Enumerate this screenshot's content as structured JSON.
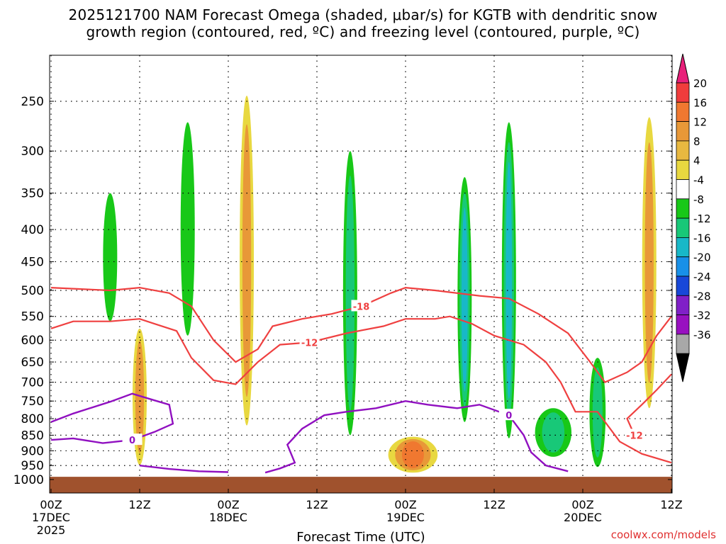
{
  "title_line1": "2025121700 NAM Forecast Omega (shaded, μbar/s) for KGTB with dendritic snow",
  "title_line2": "growth region (contoured, red, ºC) and freezing level (contoured, purple, ºC)",
  "credit": "coolwx.com/models",
  "chart_data": {
    "type": "time-height cross section",
    "title": "2025121700 NAM Forecast Omega (shaded, μbar/s) for KGTB with dendritic snow growth region (contoured, red, ºC) and freezing level (contoured, purple, ºC)",
    "xlabel": "Forecast Time (UTC)",
    "ylabel": "",
    "xlim_hours": [
      0,
      84
    ],
    "ylim_hpa": [
      1000,
      200
    ],
    "x_ticks": [
      {
        "hour": 0,
        "line1": "00Z",
        "line2": "17DEC",
        "line3": "2025"
      },
      {
        "hour": 12,
        "line1": "12Z",
        "line2": "",
        "line3": ""
      },
      {
        "hour": 24,
        "line1": "00Z",
        "line2": "18DEC",
        "line3": ""
      },
      {
        "hour": 36,
        "line1": "12Z",
        "line2": "",
        "line3": ""
      },
      {
        "hour": 48,
        "line1": "00Z",
        "line2": "19DEC",
        "line3": ""
      },
      {
        "hour": 60,
        "line1": "12Z",
        "line2": "",
        "line3": ""
      },
      {
        "hour": 72,
        "line1": "00Z",
        "line2": "20DEC",
        "line3": ""
      },
      {
        "hour": 84,
        "line1": "12Z",
        "line2": "",
        "line3": ""
      }
    ],
    "y_ticks": [
      250,
      300,
      350,
      400,
      450,
      500,
      550,
      600,
      650,
      700,
      750,
      800,
      850,
      900,
      950,
      1000
    ],
    "grid": true,
    "colorbar": {
      "labels": [
        "20",
        "16",
        "12",
        "8",
        "4",
        "-4",
        "-8",
        "-12",
        "-16",
        "-20",
        "-24",
        "-28",
        "-32",
        "-36"
      ],
      "colors": [
        "#e8207a",
        "#f03c3c",
        "#f07830",
        "#e89838",
        "#e8b840",
        "#e8d840",
        "#ffffff",
        "#18c818",
        "#18c878",
        "#18b8c8",
        "#1890e8",
        "#1848d8",
        "#8020c8",
        "#9810c0",
        "#a8a8a8",
        "#000000"
      ]
    },
    "omega_areas": [
      {
        "hour": 26.5,
        "top_hpa": 245,
        "bottom_hpa": 820,
        "peak": 11
      },
      {
        "hour": 12.0,
        "top_hpa": 575,
        "bottom_hpa": 948,
        "peak": 10
      },
      {
        "hour": 49.0,
        "top_hpa": 855,
        "bottom_hpa": 975,
        "peak": 14
      },
      {
        "hour": 81.0,
        "top_hpa": 265,
        "bottom_hpa": 770,
        "peak": 10
      },
      {
        "hour": 8.0,
        "top_hpa": 350,
        "bottom_hpa": 560,
        "peak": -6
      },
      {
        "hour": 18.5,
        "top_hpa": 270,
        "bottom_hpa": 590,
        "peak": -6
      },
      {
        "hour": 40.5,
        "top_hpa": 300,
        "bottom_hpa": 850,
        "peak": -10
      },
      {
        "hour": 56.0,
        "top_hpa": 330,
        "bottom_hpa": 810,
        "peak": -13
      },
      {
        "hour": 62.0,
        "top_hpa": 270,
        "bottom_hpa": 860,
        "peak": -15
      },
      {
        "hour": 68.0,
        "top_hpa": 770,
        "bottom_hpa": 920,
        "peak": -8
      },
      {
        "hour": 74.0,
        "top_hpa": 640,
        "bottom_hpa": 955,
        "peak": -11
      }
    ],
    "red_contours": [
      {
        "label": "-18",
        "points": [
          [
            0,
            495
          ],
          [
            8,
            500
          ],
          [
            12,
            495
          ],
          [
            16,
            505
          ],
          [
            19,
            530
          ],
          [
            22,
            600
          ],
          [
            25,
            650
          ],
          [
            28,
            620
          ],
          [
            30,
            570
          ],
          [
            34,
            555
          ],
          [
            38,
            545
          ],
          [
            42,
            530
          ],
          [
            46,
            505
          ],
          [
            48,
            495
          ],
          [
            52,
            500
          ],
          [
            58,
            510
          ],
          [
            62,
            515
          ],
          [
            66,
            545
          ],
          [
            70,
            585
          ],
          [
            73,
            650
          ],
          [
            75,
            700
          ],
          [
            78,
            675
          ],
          [
            80,
            650
          ],
          [
            82,
            590
          ],
          [
            84,
            550
          ]
        ]
      },
      {
        "label": "-12",
        "points": [
          [
            0,
            575
          ],
          [
            3,
            560
          ],
          [
            8,
            560
          ],
          [
            12,
            555
          ],
          [
            14,
            565
          ],
          [
            17,
            580
          ],
          [
            19,
            640
          ],
          [
            22,
            695
          ],
          [
            25,
            705
          ],
          [
            28,
            650
          ],
          [
            31,
            610
          ],
          [
            35,
            605
          ],
          [
            40,
            585
          ],
          [
            45,
            570
          ],
          [
            48,
            555
          ],
          [
            52,
            555
          ],
          [
            54,
            550
          ],
          [
            57,
            565
          ],
          [
            60,
            590
          ],
          [
            64,
            610
          ],
          [
            67,
            650
          ],
          [
            69,
            700
          ],
          [
            71,
            780
          ],
          [
            74,
            780
          ],
          [
            77,
            870
          ],
          [
            80,
            910
          ],
          [
            84,
            940
          ]
        ]
      },
      {
        "label": "-12",
        "points": [
          [
            84,
            680
          ],
          [
            82,
            720
          ],
          [
            80,
            760
          ],
          [
            78,
            800
          ],
          [
            79,
            850
          ]
        ]
      }
    ],
    "purple_contours": [
      {
        "label": "0",
        "points": [
          [
            0,
            810
          ],
          [
            3,
            785
          ],
          [
            8,
            752
          ],
          [
            11,
            730
          ],
          [
            14,
            748
          ],
          [
            16,
            760
          ],
          [
            16.5,
            815
          ],
          [
            14,
            840
          ],
          [
            11,
            865
          ],
          [
            7,
            875
          ],
          [
            3,
            860
          ],
          [
            0,
            865
          ]
        ]
      },
      {
        "label": "0",
        "points": [
          [
            12,
            950
          ],
          [
            16,
            962
          ],
          [
            20,
            970
          ],
          [
            24,
            973
          ]
        ]
      },
      {
        "label": "0",
        "points": [
          [
            29,
            975
          ],
          [
            31,
            960
          ],
          [
            33,
            940
          ],
          [
            32,
            880
          ],
          [
            34,
            830
          ],
          [
            37,
            790
          ],
          [
            40,
            780
          ],
          [
            44,
            770
          ],
          [
            48,
            750
          ],
          [
            51,
            760
          ],
          [
            55,
            770
          ],
          [
            58,
            760
          ],
          [
            62,
            790
          ],
          [
            64,
            850
          ],
          [
            65,
            905
          ],
          [
            67,
            950
          ],
          [
            70,
            970
          ]
        ]
      }
    ]
  }
}
